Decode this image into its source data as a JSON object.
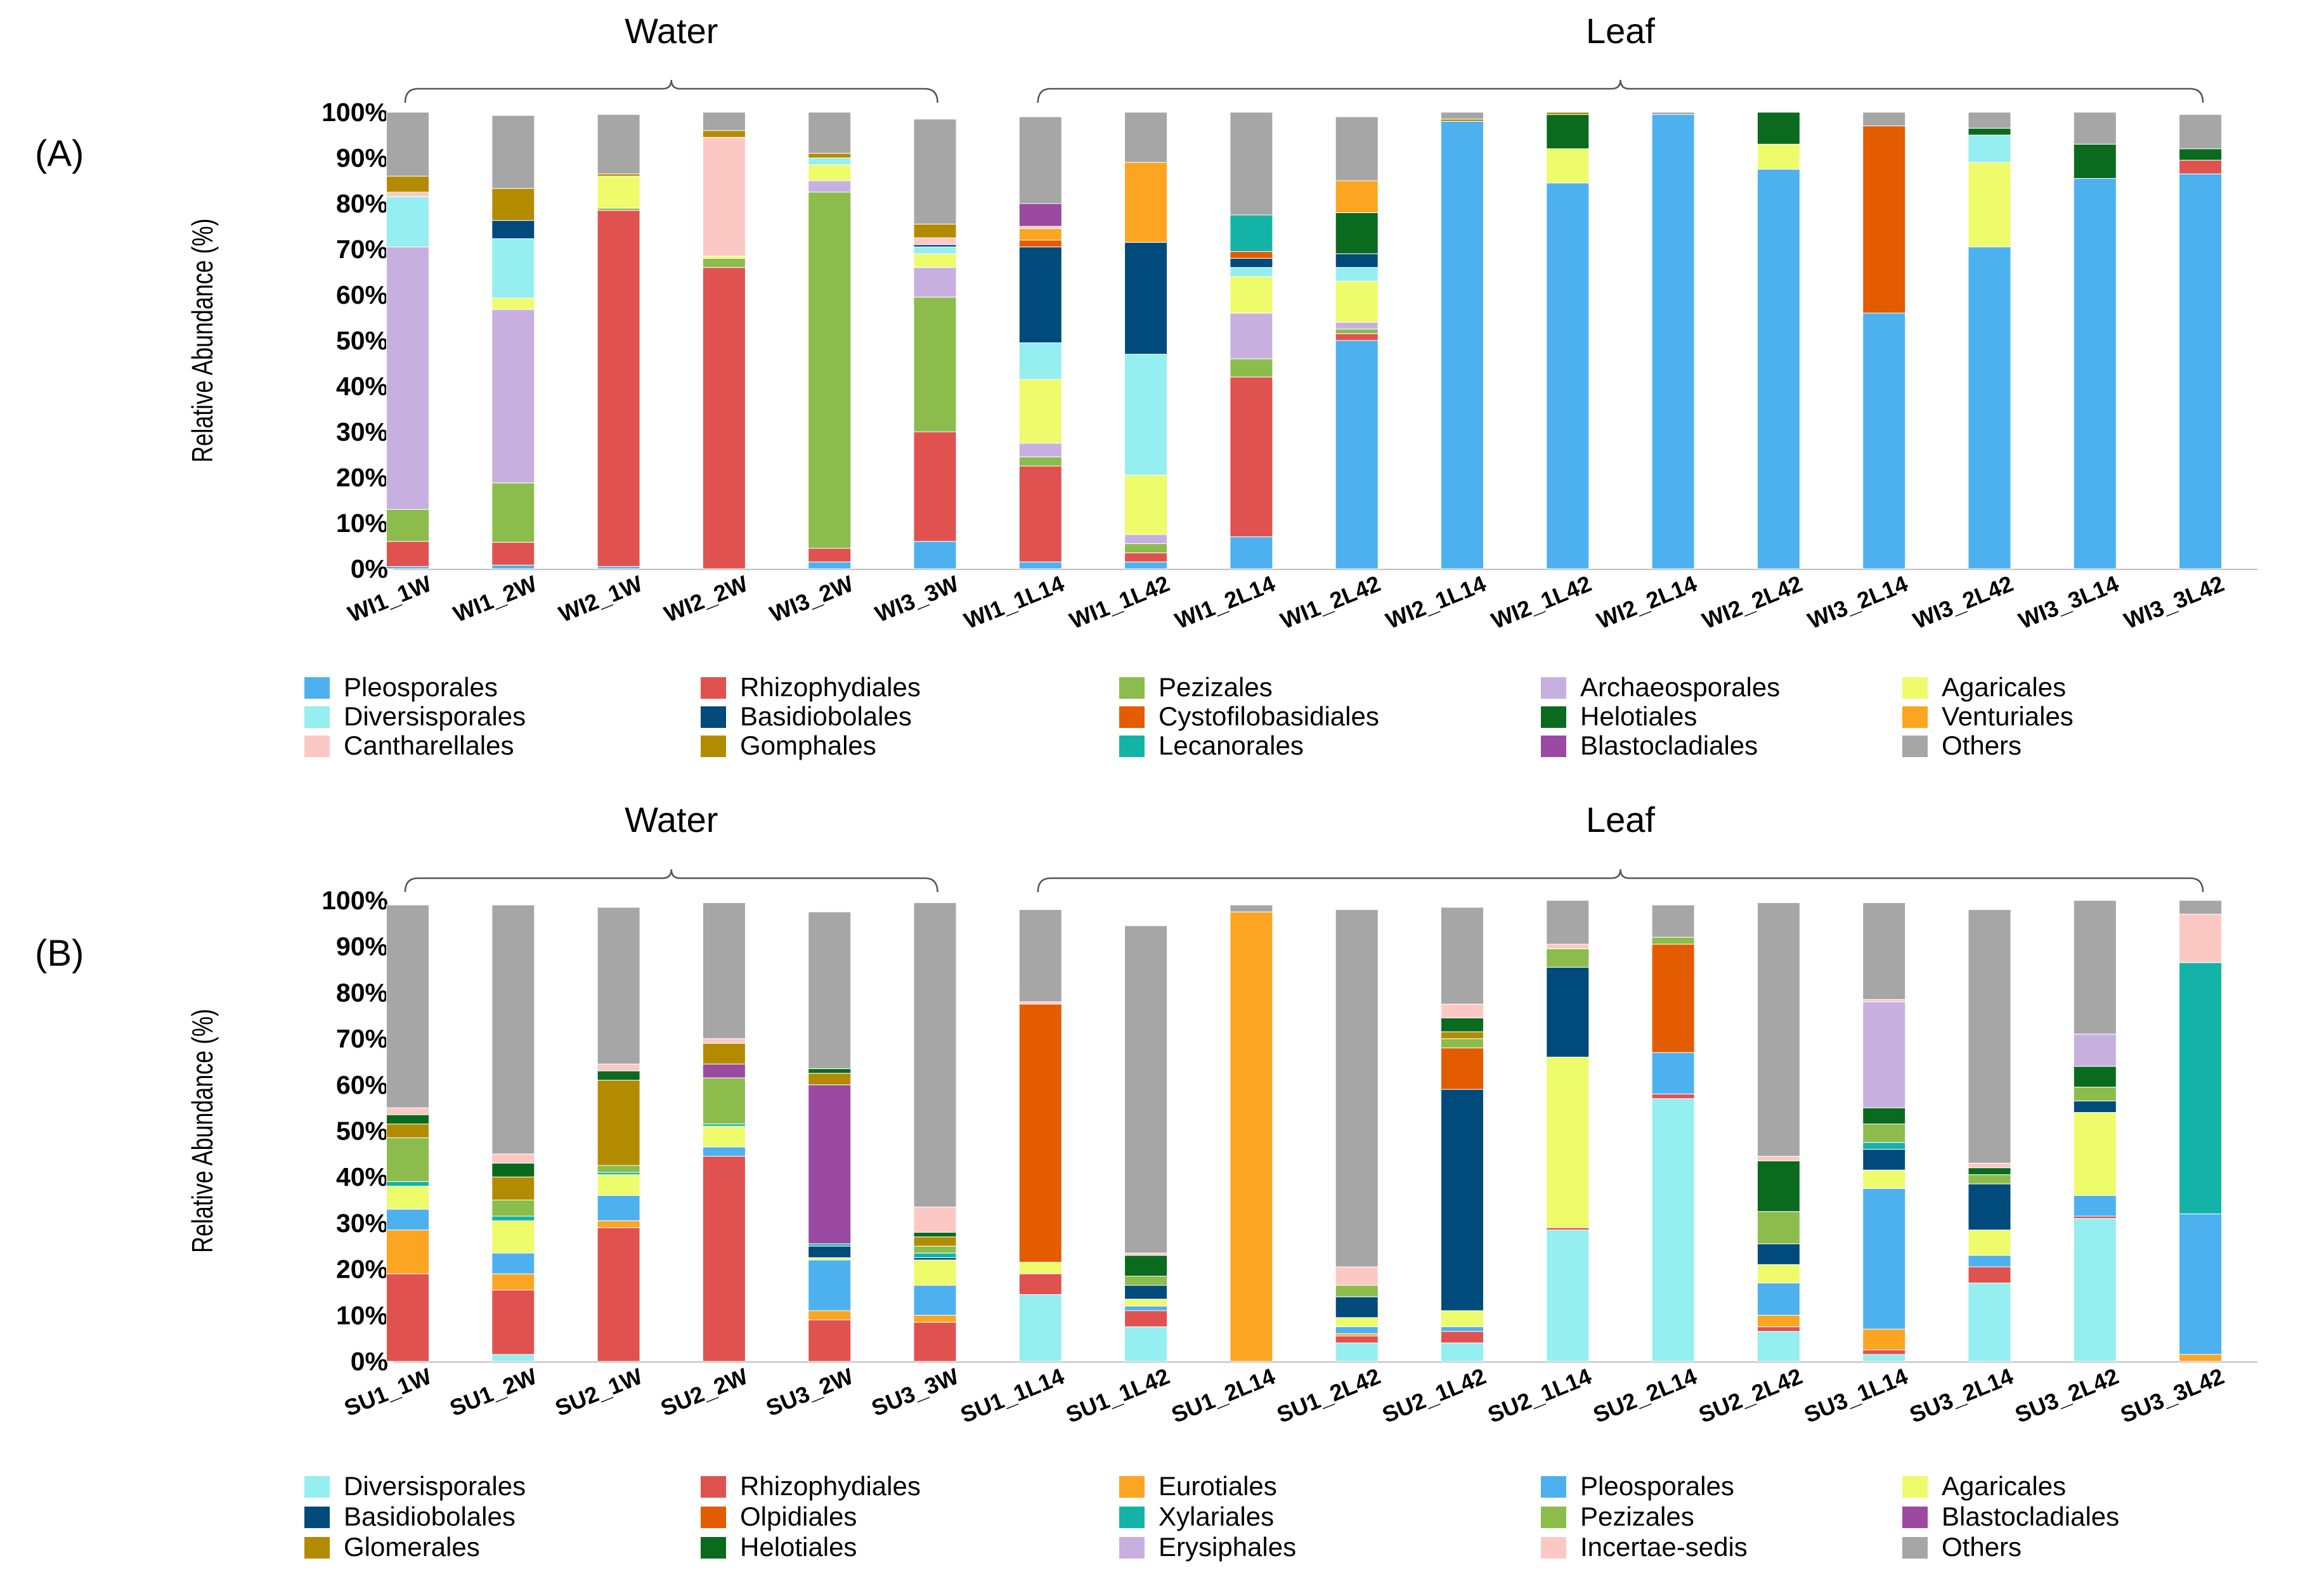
{
  "colors": {
    "Pleosporales": "#4db1ef",
    "Rhizophydiales": "#e05250",
    "Pezizales": "#8bbc4c",
    "Archaeosporales": "#c7b0e0",
    "Agaricales": "#eefb6a",
    "Diversisporales": "#95eef0",
    "Basidiobolales": "#004a7c",
    "Cystofilobasidiales": "#e35c00",
    "Olpidiales": "#e35c00",
    "Helotiales": "#0a6b1e",
    "Venturiales": "#fba522",
    "Eurotiales": "#fba522",
    "Cantharellales": "#fcc8c4",
    "Incertae-sedis": "#fcc8c4",
    "Gomphales": "#b38b00",
    "Glomerales": "#b38b00",
    "Lecanorales": "#14b3a8",
    "Xylariales": "#14b3a8",
    "Blastocladiales": "#9a4aa0",
    "Erysiphales": "#c7b0e0",
    "Others": "#a6a6a6"
  },
  "chart_data": [
    {
      "type": "bar",
      "stacked": true,
      "panel_label": "(A)",
      "ylabel": "Relative Abundance (%)",
      "ylim": [
        0,
        100
      ],
      "yticks": [
        "0%",
        "10%",
        "20%",
        "30%",
        "40%",
        "50%",
        "60%",
        "70%",
        "80%",
        "90%",
        "100%"
      ],
      "groups": [
        {
          "name": "Water",
          "from": 0,
          "to": 5
        },
        {
          "name": "Leaf",
          "from": 6,
          "to": 17
        }
      ],
      "categories": [
        "WI1_1W",
        "WI1_2W",
        "WI2_1W",
        "WI2_2W",
        "WI3_2W",
        "WI3_3W",
        "WI1_1L14",
        "WI1_1L42",
        "WI1_2L14",
        "WI1_2L42",
        "WI2_1L14",
        "WI2_1L42",
        "WI2_2L14",
        "WI2_2L42",
        "WI3_2L14",
        "WI3_2L42",
        "WI3_3L14",
        "WI3_3L42"
      ],
      "legend": [
        "Pleosporales",
        "Rhizophydiales",
        "Pezizales",
        "Archaeosporales",
        "Agaricales",
        "Diversisporales",
        "Basidiobolales",
        "Cystofilobasidiales",
        "Helotiales",
        "Venturiales",
        "Cantharellales",
        "Gomphales",
        "Lecanorales",
        "Blastocladiales",
        "Others"
      ],
      "stack_order": [
        "Pleosporales",
        "Rhizophydiales",
        "Pezizales",
        "Archaeosporales",
        "Agaricales",
        "Diversisporales",
        "Basidiobolales",
        "Cystofilobasidiales",
        "Helotiales",
        "Venturiales",
        "Cantharellales",
        "Gomphales",
        "Lecanorales",
        "Blastocladiales",
        "Others"
      ],
      "series": [
        {
          "name": "Pleosporales",
          "values": [
            0.5,
            0.8,
            0.5,
            0,
            1.5,
            6,
            1.5,
            1.5,
            7,
            50,
            98,
            84.5,
            99.5,
            87.5,
            56,
            70.5,
            85.5,
            86.5
          ]
        },
        {
          "name": "Rhizophydiales",
          "values": [
            5.5,
            5,
            78,
            66,
            3,
            24,
            21,
            2,
            35,
            1.5,
            0,
            0,
            0,
            0,
            0,
            0,
            0,
            3
          ]
        },
        {
          "name": "Pezizales",
          "values": [
            7,
            13,
            0.5,
            2,
            78,
            29.5,
            2,
            2,
            4,
            1,
            0,
            0,
            0,
            0,
            0,
            0,
            0,
            0
          ]
        },
        {
          "name": "Archaeosporales",
          "values": [
            57.5,
            38,
            0,
            0,
            2.5,
            6.5,
            3,
            2,
            10,
            1.5,
            0,
            0,
            0,
            0,
            0,
            0,
            0,
            0
          ]
        },
        {
          "name": "Agaricales",
          "values": [
            0,
            2.5,
            7,
            0.5,
            3.5,
            3,
            14,
            13,
            8,
            9,
            0,
            7.5,
            0,
            5.5,
            0,
            18.5,
            0,
            0
          ]
        },
        {
          "name": "Diversisporales",
          "values": [
            11,
            13,
            0,
            0,
            1.5,
            1.5,
            8,
            26.5,
            2,
            3,
            0,
            0,
            0,
            0,
            0,
            6,
            0,
            0
          ]
        },
        {
          "name": "Basidiobolales",
          "values": [
            0,
            4,
            0,
            0,
            0,
            0.5,
            21,
            24.5,
            2,
            3,
            0,
            0,
            0,
            0,
            0,
            0,
            0,
            0
          ]
        },
        {
          "name": "Cystofilobasidiales",
          "values": [
            0,
            0,
            0,
            0,
            0,
            0,
            1.5,
            0,
            1.5,
            0,
            0,
            0,
            0,
            0,
            41,
            0,
            0,
            0
          ]
        },
        {
          "name": "Helotiales",
          "values": [
            0,
            0,
            0,
            0,
            0,
            0,
            0,
            0,
            0,
            9,
            0,
            7.5,
            0,
            7,
            0,
            1.5,
            7.5,
            2.5
          ]
        },
        {
          "name": "Venturiales",
          "values": [
            0,
            0,
            0,
            0,
            0,
            0,
            2.5,
            17.5,
            0,
            7,
            0,
            0,
            0,
            0,
            0,
            0,
            0,
            0
          ]
        },
        {
          "name": "Cantharellales",
          "values": [
            1,
            0,
            0,
            26,
            0,
            1.5,
            0.5,
            0,
            0,
            0,
            0,
            0,
            0,
            0,
            0,
            0,
            0,
            0
          ]
        },
        {
          "name": "Gomphales",
          "values": [
            3.5,
            7,
            0.5,
            1.5,
            1,
            3,
            0,
            0,
            0,
            0,
            0.5,
            0.5,
            0,
            0,
            0,
            0,
            0,
            0
          ]
        },
        {
          "name": "Lecanorales",
          "values": [
            0,
            0,
            0,
            0,
            0,
            0,
            0,
            0,
            8,
            0,
            0,
            0,
            0,
            0,
            0,
            0,
            0,
            0
          ]
        },
        {
          "name": "Blastocladiales",
          "values": [
            0,
            0,
            0,
            0,
            0,
            0,
            5,
            0,
            0,
            0,
            0,
            0,
            0,
            0,
            0,
            0,
            0,
            0
          ]
        },
        {
          "name": "Others",
          "values": [
            14,
            16,
            13,
            4,
            9,
            23,
            19,
            11,
            22.5,
            14,
            1.5,
            0,
            0.5,
            0,
            3,
            3.5,
            7,
            7.5
          ]
        }
      ]
    },
    {
      "type": "bar",
      "stacked": true,
      "panel_label": "(B)",
      "ylabel": "Relative Abundance (%)",
      "ylim": [
        0,
        100
      ],
      "yticks": [
        "0%",
        "10%",
        "20%",
        "30%",
        "40%",
        "50%",
        "60%",
        "70%",
        "80%",
        "90%",
        "100%"
      ],
      "groups": [
        {
          "name": "Water",
          "from": 0,
          "to": 5
        },
        {
          "name": "Leaf",
          "from": 6,
          "to": 17
        }
      ],
      "categories": [
        "SU1_1W",
        "SU1_2W",
        "SU2_1W",
        "SU2_2W",
        "SU3_2W",
        "SU3_3W",
        "SU1_1L14",
        "SU1_1L42",
        "SU1_2L14",
        "SU1_2L42",
        "SU2_1L42",
        "SU2_1L14",
        "SU2_2L14",
        "SU2_2L42",
        "SU3_1L14",
        "SU3_2L14",
        "SU3_2L42",
        "SU3_3L42"
      ],
      "legend": [
        "Diversisporales",
        "Rhizophydiales",
        "Eurotiales",
        "Pleosporales",
        "Agaricales",
        "Basidiobolales",
        "Olpidiales",
        "Xylariales",
        "Pezizales",
        "Blastocladiales",
        "Glomerales",
        "Helotiales",
        "Erysiphales",
        "Incertae-sedis",
        "Others"
      ],
      "stack_order": [
        "Diversisporales",
        "Rhizophydiales",
        "Eurotiales",
        "Pleosporales",
        "Agaricales",
        "Basidiobolales",
        "Olpidiales",
        "Xylariales",
        "Pezizales",
        "Blastocladiales",
        "Glomerales",
        "Helotiales",
        "Erysiphales",
        "Incertae-sedis",
        "Others"
      ],
      "series": [
        {
          "name": "Diversisporales",
          "values": [
            0,
            1.5,
            0,
            0,
            0,
            0,
            14.5,
            7.5,
            0,
            4,
            4,
            28.5,
            57,
            6.5,
            1.5,
            17,
            31,
            0
          ]
        },
        {
          "name": "Rhizophydiales",
          "values": [
            19,
            14,
            29,
            44.5,
            9,
            8.5,
            4.5,
            3.5,
            0,
            1.5,
            2.5,
            0.5,
            1,
            1,
            1,
            3.5,
            0.5,
            0
          ]
        },
        {
          "name": "Eurotiales",
          "values": [
            9.5,
            3.5,
            1.5,
            0,
            2,
            1.5,
            0,
            0,
            97.5,
            0.5,
            0,
            0,
            0,
            2.5,
            4.5,
            0,
            0,
            1.5
          ]
        },
        {
          "name": "Pleosporales",
          "values": [
            4.5,
            4.5,
            5.5,
            2,
            11,
            6.5,
            0,
            1,
            0,
            1.5,
            1,
            0,
            9,
            7,
            30.5,
            2.5,
            4.5,
            30.5
          ]
        },
        {
          "name": "Agaricales",
          "values": [
            5,
            7,
            4.5,
            4.5,
            0.5,
            5.5,
            2.5,
            1.5,
            0,
            2,
            3.5,
            37,
            0,
            4,
            4,
            5.5,
            18,
            0
          ]
        },
        {
          "name": "Basidiobolales",
          "values": [
            0,
            0,
            0,
            0,
            2.5,
            0.5,
            0,
            3,
            0,
            4.5,
            48,
            19.5,
            0,
            4.5,
            4.5,
            10,
            2.5,
            0
          ]
        },
        {
          "name": "Olpidiales",
          "values": [
            0,
            0,
            0,
            0,
            0,
            0,
            56,
            0,
            0,
            0,
            9,
            0,
            23.5,
            0,
            0,
            0,
            0,
            0
          ]
        },
        {
          "name": "Xylariales",
          "values": [
            1,
            1,
            0.5,
            0.5,
            0.5,
            1,
            0,
            0,
            0,
            0,
            0,
            0,
            0,
            0,
            1.5,
            0,
            0,
            54.5
          ]
        },
        {
          "name": "Pezizales",
          "values": [
            9.5,
            3.5,
            1.5,
            10,
            0,
            1.5,
            0,
            2,
            0,
            2.5,
            2,
            4,
            1.5,
            7,
            4,
            2,
            3,
            0
          ]
        },
        {
          "name": "Blastocladiales",
          "values": [
            0,
            0,
            0,
            3,
            34.5,
            0,
            0,
            0,
            0,
            0,
            0,
            0,
            0,
            0,
            0,
            0,
            0,
            0
          ]
        },
        {
          "name": "Glomerales",
          "values": [
            3,
            5,
            18.5,
            4.5,
            2.5,
            2,
            0,
            0,
            0,
            0,
            1.5,
            0,
            0,
            0,
            0,
            0,
            0,
            0
          ]
        },
        {
          "name": "Helotiales",
          "values": [
            2,
            3,
            2,
            0,
            1,
            1,
            0,
            4.5,
            0,
            0,
            3,
            0,
            0,
            11,
            3.5,
            1.5,
            4.5,
            0
          ]
        },
        {
          "name": "Erysiphales",
          "values": [
            0,
            0,
            0,
            0,
            0,
            0,
            0,
            0,
            0,
            0,
            0,
            0,
            0,
            0,
            23,
            0,
            7,
            0
          ]
        },
        {
          "name": "Incertae-sedis",
          "values": [
            1.5,
            2,
            1.5,
            1,
            0,
            5.5,
            0.5,
            0.5,
            0,
            4,
            3,
            1,
            0,
            1,
            0.5,
            1,
            0,
            10.5
          ]
        },
        {
          "name": "Others",
          "values": [
            44,
            54,
            34,
            29.5,
            34,
            66,
            20,
            71,
            1.5,
            77.5,
            21,
            9.5,
            7,
            55,
            21,
            55,
            29,
            3
          ]
        }
      ]
    }
  ]
}
